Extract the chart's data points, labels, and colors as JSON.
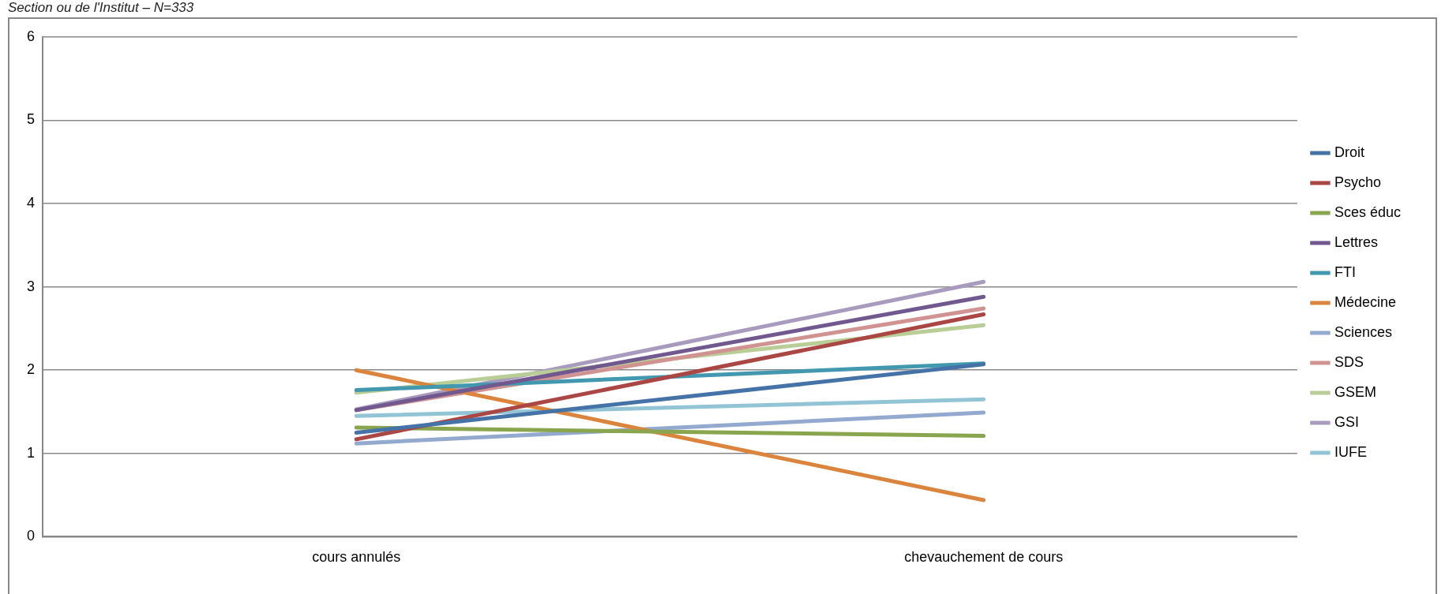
{
  "chart_data": {
    "type": "line",
    "title": "Section ou de l'Institut – N=333",
    "categories": [
      "cours annulés",
      "chevauchement de cours"
    ],
    "ylim": [
      0,
      6
    ],
    "yticks": [
      0,
      1,
      2,
      3,
      4,
      5,
      6
    ],
    "grid": "y",
    "legend": "right",
    "marker": "none",
    "line_style": "solid",
    "series": [
      {
        "name": "Droit",
        "color": "#4572a7",
        "values": [
          1.25,
          2.07
        ]
      },
      {
        "name": "Psycho",
        "color": "#aa4643",
        "values": [
          1.17,
          2.67
        ]
      },
      {
        "name": "Sces éduc",
        "color": "#89a54e",
        "values": [
          1.31,
          1.21
        ]
      },
      {
        "name": "Lettres",
        "color": "#71588f",
        "values": [
          1.52,
          2.88
        ]
      },
      {
        "name": "FTI",
        "color": "#4198af",
        "values": [
          1.76,
          2.08
        ]
      },
      {
        "name": "Médecine",
        "color": "#db843d",
        "values": [
          2.0,
          0.44
        ]
      },
      {
        "name": "Sciences",
        "color": "#93a9cf",
        "values": [
          1.12,
          1.49
        ]
      },
      {
        "name": "SDS",
        "color": "#d19392",
        "values": [
          1.52,
          2.74
        ]
      },
      {
        "name": "GSEM",
        "color": "#b9cd96",
        "values": [
          1.73,
          2.54
        ]
      },
      {
        "name": "GSI",
        "color": "#a99bbd",
        "values": [
          1.53,
          3.06
        ]
      },
      {
        "name": "IUFE",
        "color": "#92c4d6",
        "values": [
          1.45,
          1.65
        ]
      }
    ]
  }
}
